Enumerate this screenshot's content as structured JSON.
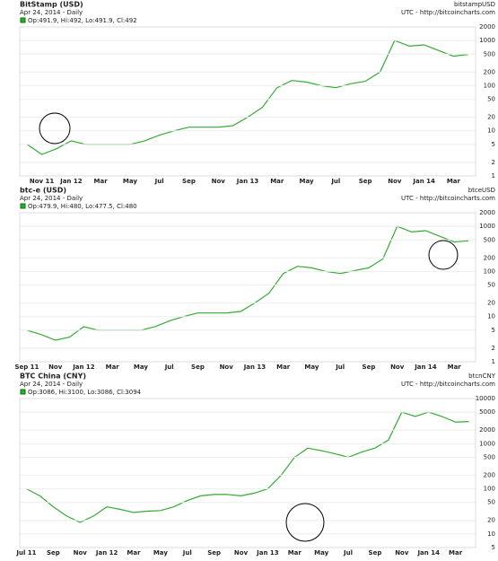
{
  "chart_data": [
    {
      "type": "line",
      "title": "BitStamp (USD)",
      "symbol": "bitstampUSD",
      "subtitle": "Apr 24, 2014 - Daily",
      "source": "UTC - http://bitcoincharts.com",
      "ohlc": "Op:491.9, Hi:492, Lo:491.9, Cl:492",
      "categories": [
        null,
        "Nov 11",
        null,
        "Jan 12",
        null,
        "Mar",
        null,
        "May",
        null,
        "Jul",
        null,
        "Sep",
        null,
        "Nov",
        null,
        "Jan 13",
        null,
        "Mar",
        null,
        "May",
        null,
        "Jul",
        null,
        "Sep",
        null,
        "Nov",
        null,
        "Jan 14",
        null,
        "Mar",
        null
      ],
      "values": [
        5,
        3,
        4,
        6,
        5,
        5,
        5,
        5,
        6,
        8,
        10,
        12,
        12,
        12,
        13,
        20,
        33,
        90,
        130,
        120,
        100,
        90,
        110,
        125,
        200,
        1000,
        750,
        800,
        600,
        450,
        492
      ],
      "color": "#33aa33",
      "log_scale": true,
      "grid": true,
      "ylim": [
        1,
        2000
      ],
      "yticks": [
        1,
        2,
        5,
        10,
        20,
        50,
        100,
        200,
        500,
        1000,
        2000
      ]
    },
    {
      "type": "line",
      "title": "btc-e (USD)",
      "symbol": "btceUSD",
      "subtitle": "Apr 24, 2014 - Daily",
      "source": "UTC - http://bitcoincharts.com",
      "ohlc": "Op:479.9, Hi:480, Lo:477.5, Cl:480",
      "categories": [
        "Sep 11",
        null,
        "Nov",
        null,
        "Jan 12",
        null,
        "Mar",
        null,
        "May",
        null,
        "Jul",
        null,
        "Sep",
        null,
        "Nov",
        null,
        "Jan 13",
        null,
        "Mar",
        null,
        "May",
        null,
        "Jul",
        null,
        "Sep",
        null,
        "Nov",
        null,
        "Jan 14",
        null,
        "Mar",
        null
      ],
      "values": [
        5,
        4,
        3,
        3.5,
        6,
        5,
        5,
        5,
        5,
        6,
        8,
        10,
        12,
        12,
        12,
        13,
        20,
        33,
        90,
        130,
        120,
        100,
        90,
        105,
        120,
        190,
        1000,
        750,
        800,
        600,
        450,
        480
      ],
      "color": "#33aa33",
      "log_scale": true,
      "grid": true,
      "ylim": [
        1,
        2000
      ],
      "yticks": [
        1,
        2,
        5,
        10,
        20,
        50,
        100,
        200,
        500,
        1000,
        2000
      ]
    },
    {
      "type": "line",
      "title": "BTC China (CNY)",
      "symbol": "btcnCNY",
      "subtitle": "Apr 24, 2014 - Daily",
      "source": "UTC - http://bitcoincharts.com",
      "ohlc": "Op:3086, Hi:3100, Lo:3086, Cl:3094",
      "categories": [
        "Jul 11",
        null,
        "Sep",
        null,
        "Nov",
        null,
        "Jan 12",
        null,
        "Mar",
        null,
        "May",
        null,
        "Jul",
        null,
        "Sep",
        null,
        "Nov",
        null,
        "Jan 13",
        null,
        "Mar",
        null,
        "May",
        null,
        "Jul",
        null,
        "Sep",
        null,
        "Nov",
        null,
        "Jan 14",
        null,
        "Mar",
        null
      ],
      "values": [
        100,
        70,
        40,
        25,
        18,
        25,
        40,
        35,
        30,
        32,
        33,
        40,
        55,
        70,
        75,
        75,
        70,
        80,
        100,
        200,
        500,
        800,
        700,
        600,
        500,
        650,
        800,
        1200,
        5000,
        4000,
        5000,
        4000,
        3000,
        3094
      ],
      "color": "#33aa33",
      "log_scale": true,
      "grid": true,
      "ylim": [
        5,
        10000
      ],
      "yticks": [
        5,
        10,
        20,
        50,
        100,
        200,
        500,
        1000,
        2000,
        5000,
        10000
      ]
    }
  ]
}
